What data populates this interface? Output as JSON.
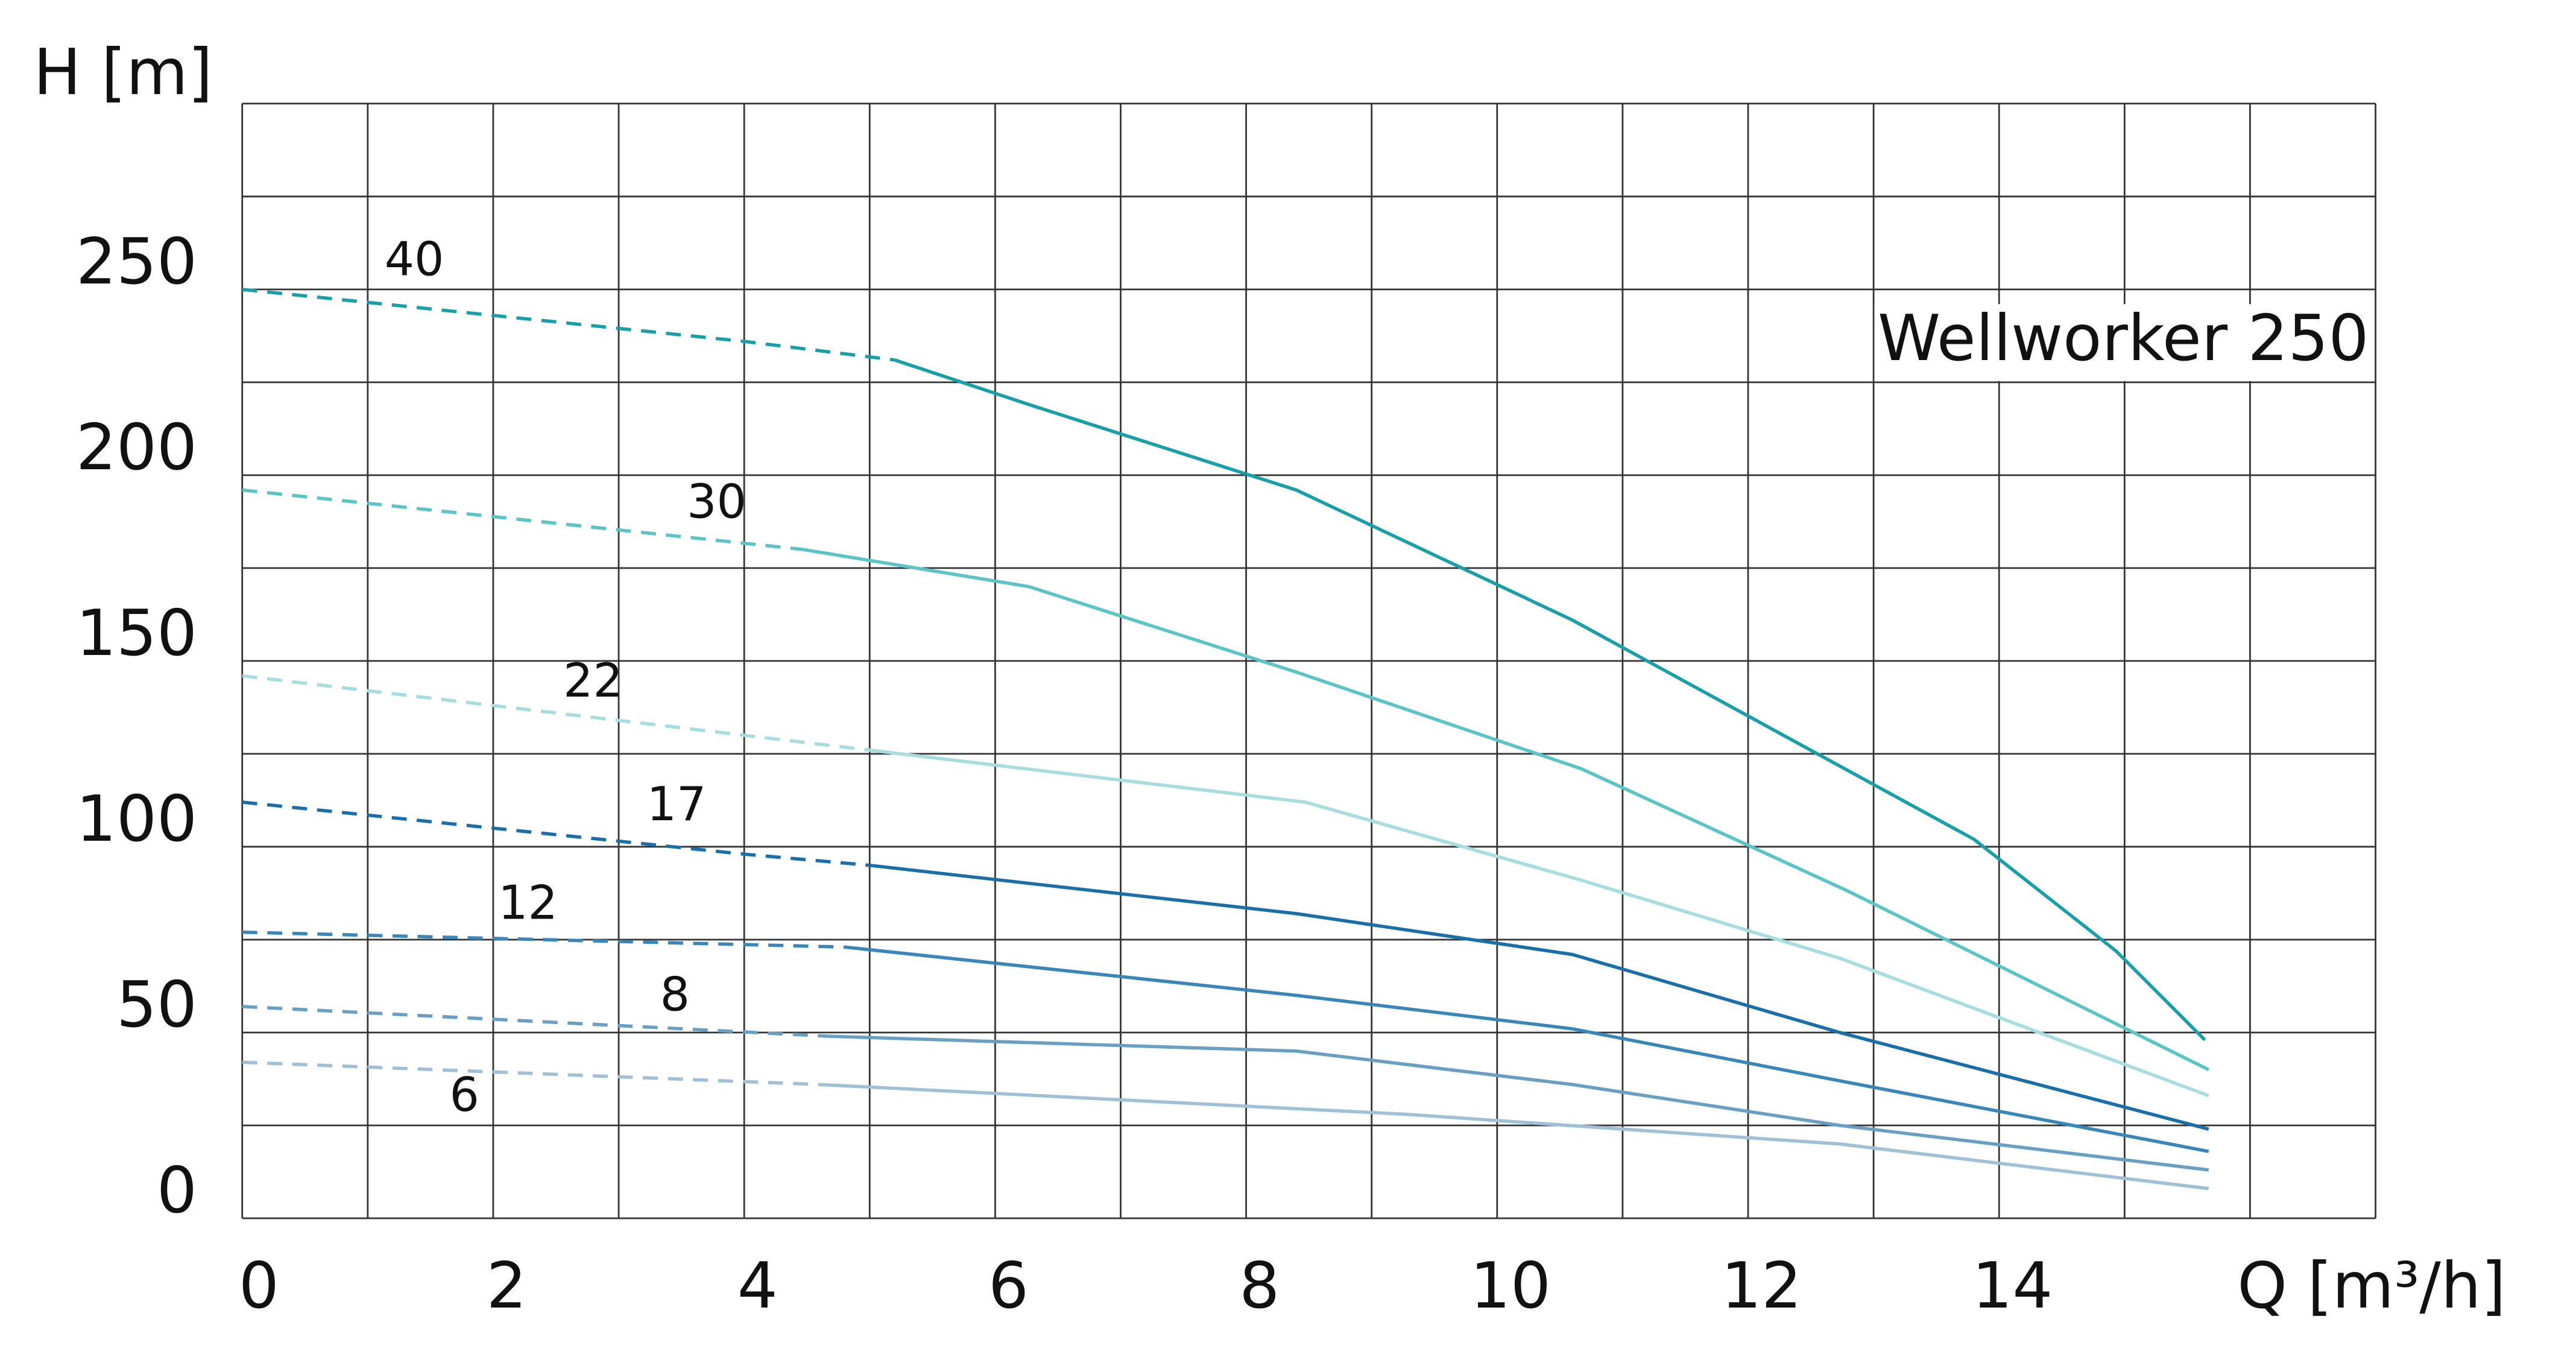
{
  "chart_data": {
    "type": "line",
    "title": "Wellworker 250",
    "x_label": "Q [m³/h]",
    "y_label": "H [m]",
    "xlim": [
      0,
      17
    ],
    "xticks": [
      0,
      2,
      4,
      6,
      8,
      10,
      12,
      14
    ],
    "x_minor_ticks": [
      1,
      3,
      5,
      7,
      9,
      11,
      13,
      15,
      16,
      17
    ],
    "ylim": [
      0,
      300
    ],
    "yticks": [
      0,
      50,
      100,
      150,
      200,
      250
    ],
    "y_minor_ticks": [
      25,
      75,
      125,
      175,
      225,
      275,
      300
    ],
    "grid": true,
    "series": [
      {
        "name": "40",
        "color": "#1a9fa8",
        "solid_from": 5.2,
        "x": [
          0,
          4,
          5.2,
          6.27,
          8.4,
          10.6,
          13.8,
          14.93,
          15.64
        ],
        "values": [
          250,
          236,
          231,
          219,
          196,
          161,
          102,
          72,
          48
        ]
      },
      {
        "name": "30",
        "color": "#5cc4c6",
        "solid_from": 4.47,
        "x": [
          0,
          4.47,
          6.27,
          8.4,
          10.67,
          12.8,
          15.67
        ],
        "values": [
          196,
          180,
          170,
          147,
          121,
          88,
          40
        ]
      },
      {
        "name": "22",
        "color": "#a8dde0",
        "solid_from": 5,
        "x": [
          0,
          5,
          8.47,
          10.67,
          12.73,
          15.67
        ],
        "values": [
          146,
          126,
          112,
          91,
          70,
          33
        ]
      },
      {
        "name": "17",
        "color": "#1a6fa8",
        "solid_from": 5,
        "x": [
          0,
          4,
          5,
          8.4,
          10.6,
          12.73,
          15.67
        ],
        "values": [
          112,
          98,
          95,
          82,
          71,
          50,
          24
        ]
      },
      {
        "name": "12",
        "color": "#3a86b8",
        "solid_from": 4.8,
        "x": [
          0,
          4.8,
          8.4,
          10.6,
          12.73,
          15.67
        ],
        "values": [
          77,
          73,
          60,
          51,
          37,
          18
        ]
      },
      {
        "name": "8",
        "color": "#6a9fc4",
        "solid_from": 4.67,
        "x": [
          0,
          4.67,
          8.4,
          10.6,
          12.73,
          15.67
        ],
        "values": [
          57,
          49,
          45,
          36,
          25,
          13
        ]
      },
      {
        "name": "6",
        "color": "#9fc0d6",
        "solid_from": 4.6,
        "x": [
          0,
          4.6,
          9.27,
          12.73,
          15.67
        ],
        "values": [
          42,
          36,
          28,
          20,
          8
        ]
      }
    ]
  }
}
